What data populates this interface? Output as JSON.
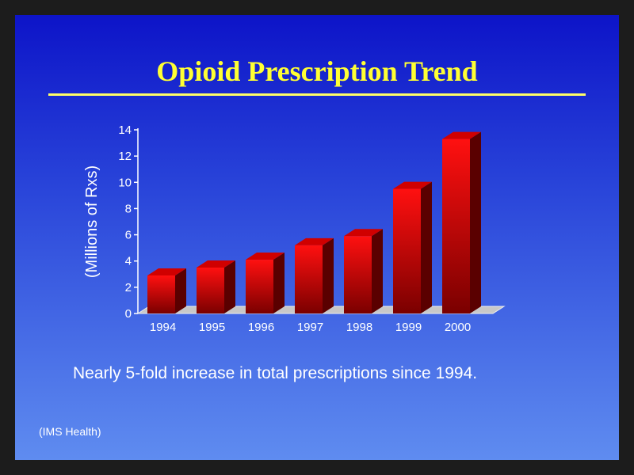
{
  "slide": {
    "title": "Opioid Prescription Trend",
    "caption": "Nearly 5-fold increase in total prescriptions since 1994.",
    "source": "(IMS Health)"
  },
  "colors": {
    "bar_face": "#ff1010",
    "bar_dark": "#7a0000",
    "bar_top": "#d00000",
    "bar_side": "#5a0000",
    "axis": "#ffffff",
    "floor": "#c8c8c8",
    "title": "#ffff33"
  },
  "chart_data": {
    "type": "bar",
    "style": "3d",
    "categories": [
      "1994",
      "1995",
      "1996",
      "1997",
      "1998",
      "1999",
      "2000"
    ],
    "values": [
      2.9,
      3.5,
      4.1,
      5.2,
      5.9,
      9.5,
      13.3
    ],
    "ylabel": "(Millions of Rxs)",
    "xlabel": "",
    "ylim": [
      0,
      14
    ],
    "yticks": [
      0,
      2,
      4,
      6,
      8,
      10,
      12,
      14
    ],
    "grid": false,
    "legend": "none"
  }
}
